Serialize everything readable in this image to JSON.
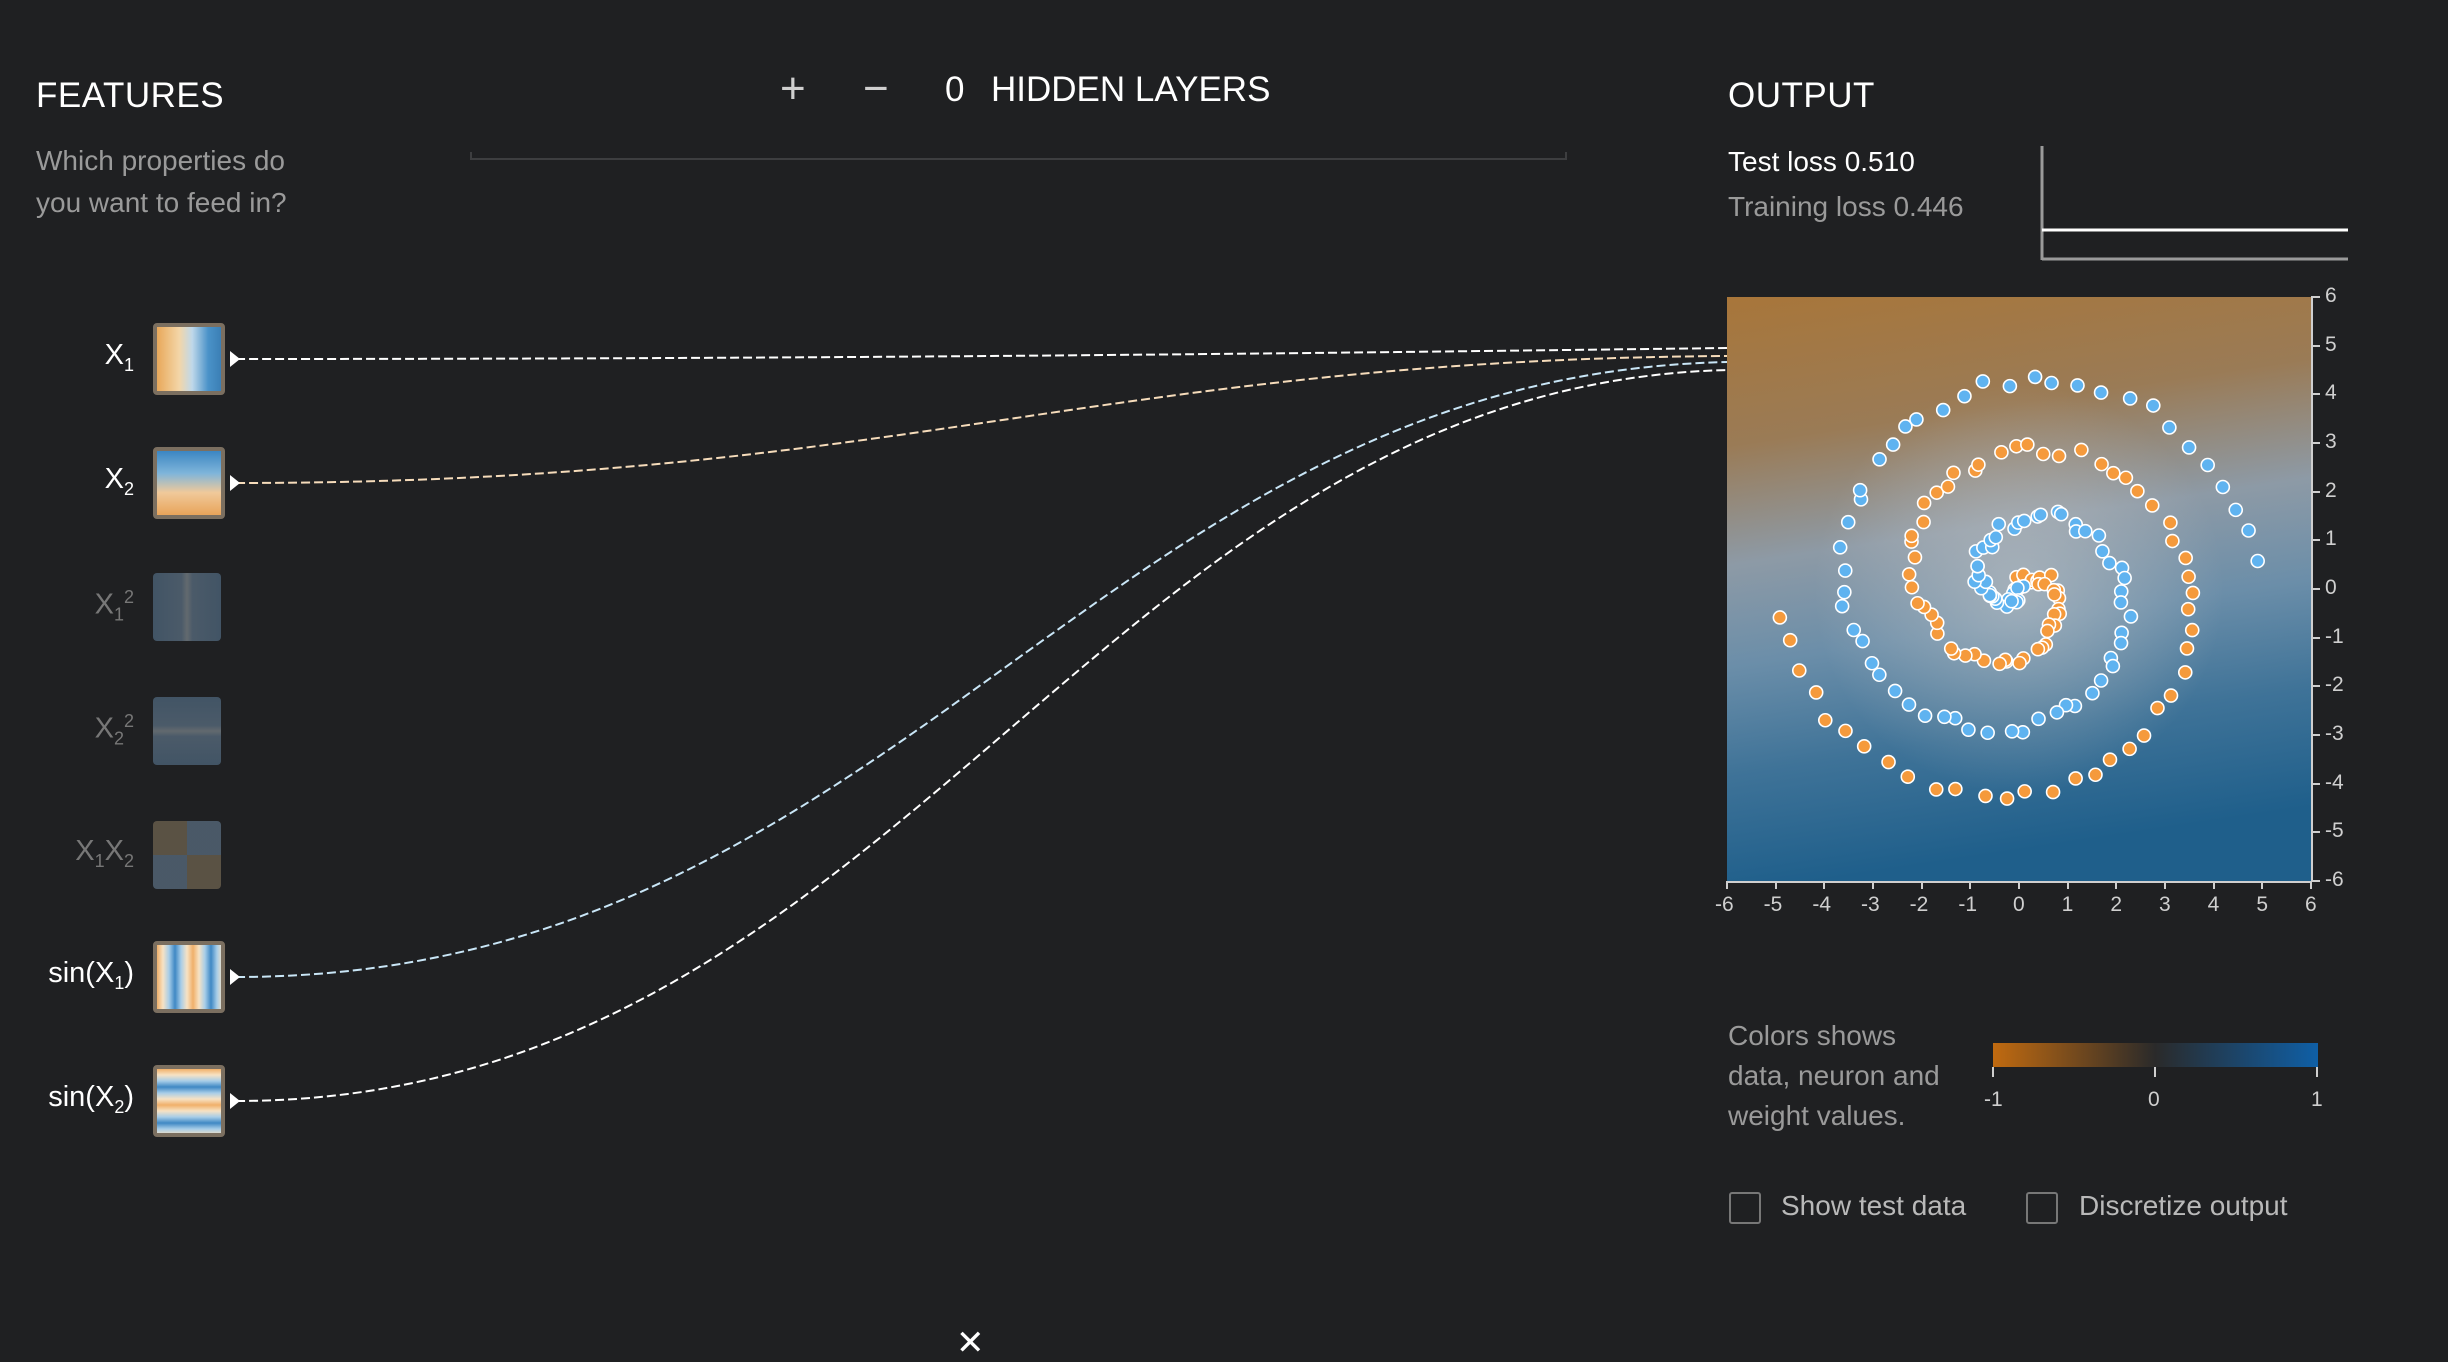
{
  "features": {
    "title": "FEATURES",
    "question": [
      "Which properties do",
      "you want to feed in?"
    ],
    "items": [
      {
        "base": "X",
        "sub": "1",
        "sup": "",
        "suffix": "",
        "active": true
      },
      {
        "base": "X",
        "sub": "2",
        "sup": "",
        "suffix": "",
        "active": true
      },
      {
        "base": "X",
        "sub": "1",
        "sup": "2",
        "suffix": "",
        "active": false
      },
      {
        "base": "X",
        "sub": "2",
        "sup": "2",
        "suffix": "",
        "active": false
      },
      {
        "base": "X",
        "sub": "1",
        "sup": "",
        "suffix": "X",
        "sub2": "2",
        "active": false
      },
      {
        "base": "sin(X",
        "sub": "1",
        "sup": "",
        "suffix": ")",
        "active": true
      },
      {
        "base": "sin(X",
        "sub": "2",
        "sup": "",
        "suffix": ")",
        "active": true
      }
    ]
  },
  "hidden_layers": {
    "add_symbol": "+",
    "remove_symbol": "−",
    "count": "0",
    "label": "HIDDEN LAYERS"
  },
  "output": {
    "title": "OUTPUT",
    "test_loss": "Test loss 0.510",
    "training_loss": "Training loss 0.446",
    "x_ticks": [
      "-6",
      "-5",
      "-4",
      "-3",
      "-2",
      "-1",
      "0",
      "1",
      "2",
      "3",
      "4",
      "5",
      "6"
    ],
    "y_ticks": [
      "6",
      "5",
      "4",
      "3",
      "2",
      "1",
      "0",
      "-1",
      "-2",
      "-3",
      "-4",
      "-5",
      "-6"
    ],
    "colors": {
      "orange": "#f59a3c",
      "blue": "#5fb3f0",
      "bg_orange": "#a8763a",
      "bg_blue": "#1f5f8b"
    }
  },
  "legend": {
    "description": [
      "Colors shows",
      "data, neuron and",
      "weight values."
    ],
    "min": "-1",
    "mid": "0",
    "max": "1"
  },
  "options": {
    "show_test_data": "Show test data",
    "discretize_output": "Discretize output",
    "show_test_checked": false,
    "discretize_checked": false
  },
  "close_symbol": "✕"
}
